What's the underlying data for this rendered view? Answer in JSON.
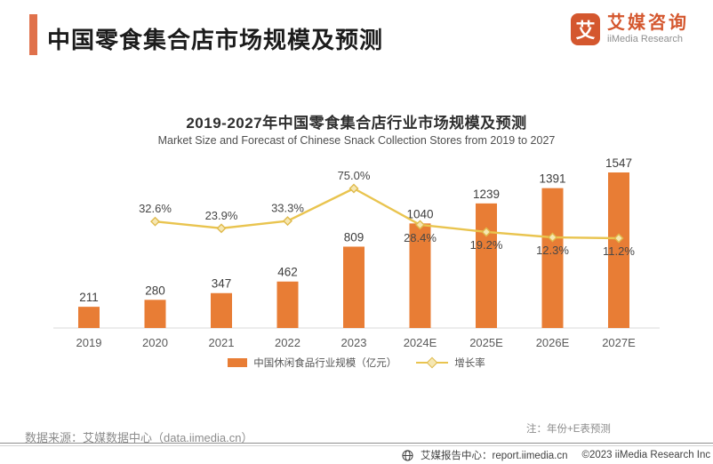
{
  "header": {
    "title": "中国零食集合店市场规模及预测"
  },
  "logo": {
    "glyph": "艾",
    "name_cn": "艾媒咨询",
    "name_en": "iiMedia Research"
  },
  "colors": {
    "accent": "#E0714B",
    "bar": "#E87D35",
    "line": "#E9C44F",
    "marker_fill": "#F6E7B2",
    "marker_stroke": "#DFBA4C",
    "logo": "#D4572E"
  },
  "chart_data": {
    "type": "bar+line combo",
    "title": "2019-2027年中国零食集合店行业市场规模及预测",
    "subtitle": "Market Size and Forecast of Chinese Snack Collection Stores from 2019 to 2027",
    "categories": [
      "2019",
      "2020",
      "2021",
      "2022",
      "2023",
      "2024E",
      "2025E",
      "2026E",
      "2027E"
    ],
    "series": [
      {
        "name": "中国休闲食品行业规模（亿元）",
        "type": "bar",
        "color": "#E87D35",
        "values": [
          211,
          280,
          347,
          462,
          809,
          1040,
          1239,
          1391,
          1547
        ]
      },
      {
        "name": "增长率",
        "type": "line",
        "color": "#E9C44F",
        "unit": "%",
        "values": [
          null,
          32.6,
          23.9,
          33.3,
          75.0,
          28.4,
          19.2,
          12.3,
          11.2
        ]
      }
    ],
    "value_labels_shown": true,
    "grid": false,
    "y_axis_shown": false,
    "legend_position": "bottom"
  },
  "source_note": "数据来源：艾媒数据中心（data.iimedia.cn）",
  "forecast_note": "注：年份+E表预测",
  "footer": {
    "icon": "globe-icon",
    "report_center": "艾媒报告中心：report.iimedia.cn",
    "copyright": "©2023  iiMedia Research Inc"
  }
}
